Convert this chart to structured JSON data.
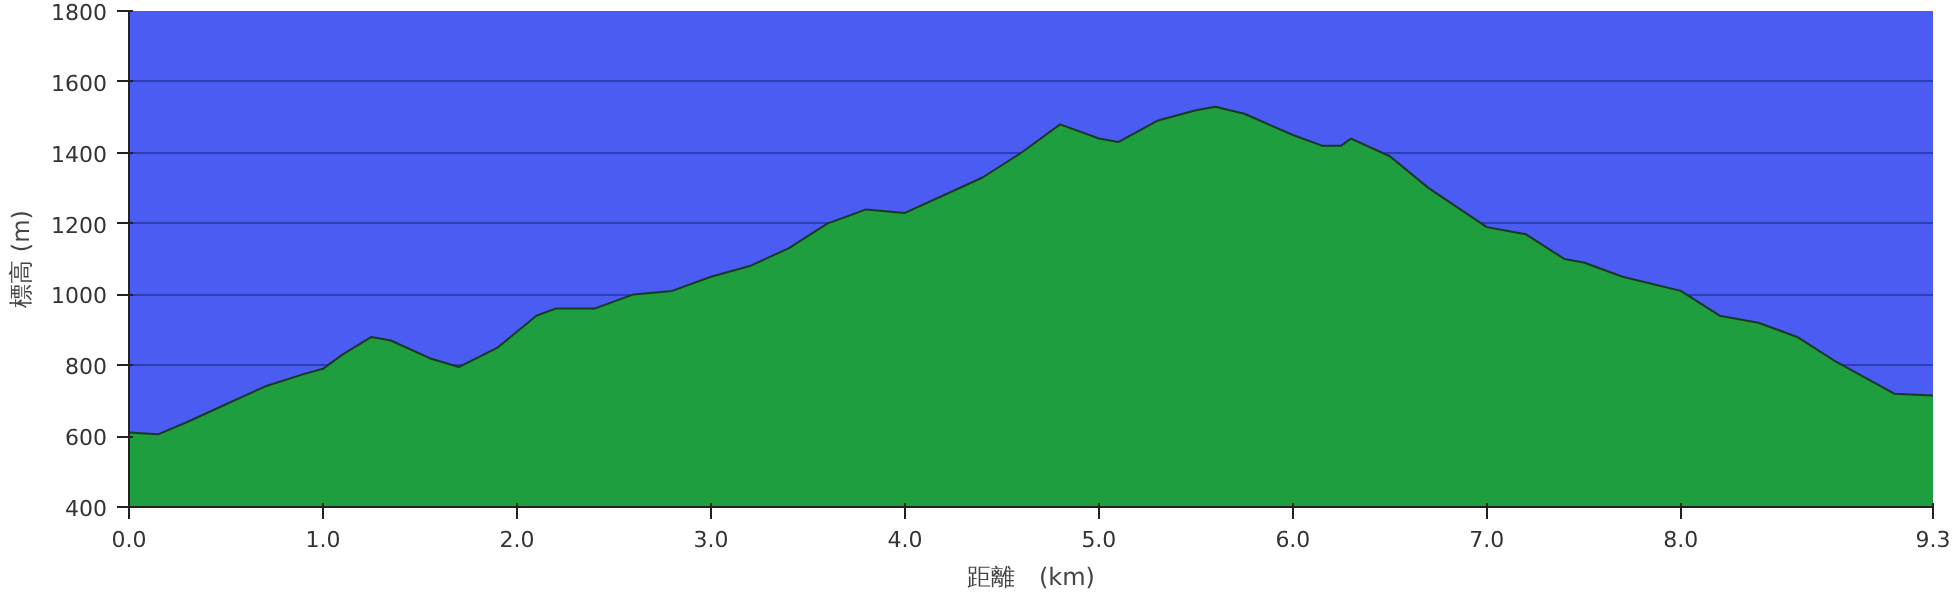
{
  "chart_data": {
    "type": "area",
    "xlabel": "距離　(km)",
    "ylabel": "標高 (m)",
    "x": [
      0,
      0.15,
      0.3,
      0.5,
      0.7,
      0.9,
      1.0,
      1.1,
      1.25,
      1.35,
      1.55,
      1.7,
      1.9,
      2.1,
      2.2,
      2.4,
      2.6,
      2.8,
      3.0,
      3.2,
      3.4,
      3.6,
      3.8,
      4.0,
      4.2,
      4.4,
      4.6,
      4.8,
      5.0,
      5.1,
      5.3,
      5.5,
      5.6,
      5.75,
      6.0,
      6.15,
      6.25,
      6.3,
      6.5,
      6.7,
      7.0,
      7.2,
      7.4,
      7.5,
      7.7,
      8.0,
      8.2,
      8.4,
      8.6,
      8.8,
      9.1,
      9.3
    ],
    "series": [
      {
        "color": "#1f9e3f",
        "values": [
          610,
          605,
          640,
          690,
          740,
          775,
          790,
          830,
          880,
          870,
          820,
          795,
          850,
          940,
          960,
          960,
          1000,
          1010,
          1050,
          1080,
          1130,
          1200,
          1240,
          1230,
          1280,
          1330,
          1400,
          1480,
          1440,
          1430,
          1490,
          1520,
          1530,
          1510,
          1450,
          1420,
          1420,
          1440,
          1390,
          1300,
          1190,
          1170,
          1100,
          1090,
          1050,
          1010,
          940,
          920,
          880,
          810,
          720,
          715
        ]
      }
    ],
    "xlim": [
      0,
      9.3
    ],
    "ylim": [
      400,
      1800
    ],
    "xticks": [
      {
        "value": 0,
        "label": "0.0"
      },
      {
        "value": 1,
        "label": "1.0"
      },
      {
        "value": 2,
        "label": "2.0"
      },
      {
        "value": 3,
        "label": "3.0"
      },
      {
        "value": 4,
        "label": "4.0"
      },
      {
        "value": 5,
        "label": "5.0"
      },
      {
        "value": 6,
        "label": "6.0"
      },
      {
        "value": 7,
        "label": "7.0"
      },
      {
        "value": 8,
        "label": "8.0"
      },
      {
        "value": 9.3,
        "label": "9.3"
      }
    ],
    "yticks": [
      400,
      600,
      800,
      1000,
      1200,
      1400,
      1600,
      1800
    ],
    "grid": "y"
  }
}
